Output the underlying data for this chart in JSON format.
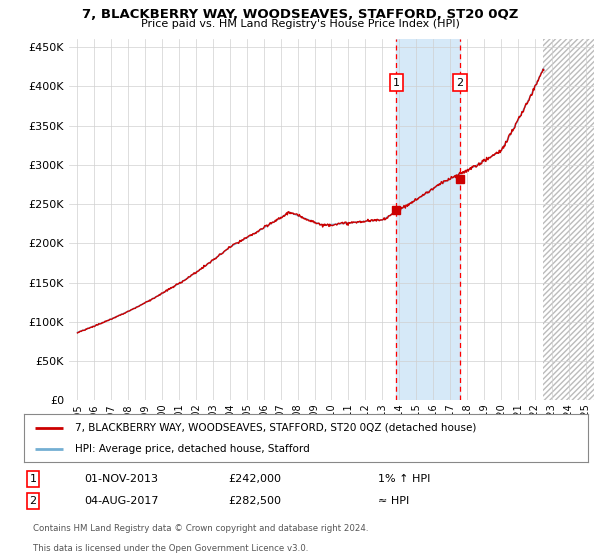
{
  "title": "7, BLACKBERRY WAY, WOODSEAVES, STAFFORD, ST20 0QZ",
  "subtitle": "Price paid vs. HM Land Registry's House Price Index (HPI)",
  "legend_line1": "7, BLACKBERRY WAY, WOODSEAVES, STAFFORD, ST20 0QZ (detached house)",
  "legend_line2": "HPI: Average price, detached house, Stafford",
  "table_row1": [
    "1",
    "01-NOV-2013",
    "£242,000",
    "1% ↑ HPI"
  ],
  "table_row2": [
    "2",
    "04-AUG-2017",
    "£282,500",
    "≈ HPI"
  ],
  "footnote1": "Contains HM Land Registry data © Crown copyright and database right 2024.",
  "footnote2": "This data is licensed under the Open Government Licence v3.0.",
  "sale1_date": 2013.83,
  "sale1_price": 242000,
  "sale2_date": 2017.58,
  "sale2_price": 282500,
  "ylim": [
    0,
    460000
  ],
  "xlim_start": 1994.5,
  "xlim_end": 2025.5,
  "hatch_region_start": 2022.5,
  "hatch_region_end": 2025.5,
  "shade_region_start": 2013.83,
  "shade_region_end": 2017.58,
  "line_color_hpi": "#74afd3",
  "line_color_price": "#cc0000",
  "shade_color": "#d6e9f8",
  "background_color": "#ffffff",
  "grid_color": "#d0d0d0"
}
